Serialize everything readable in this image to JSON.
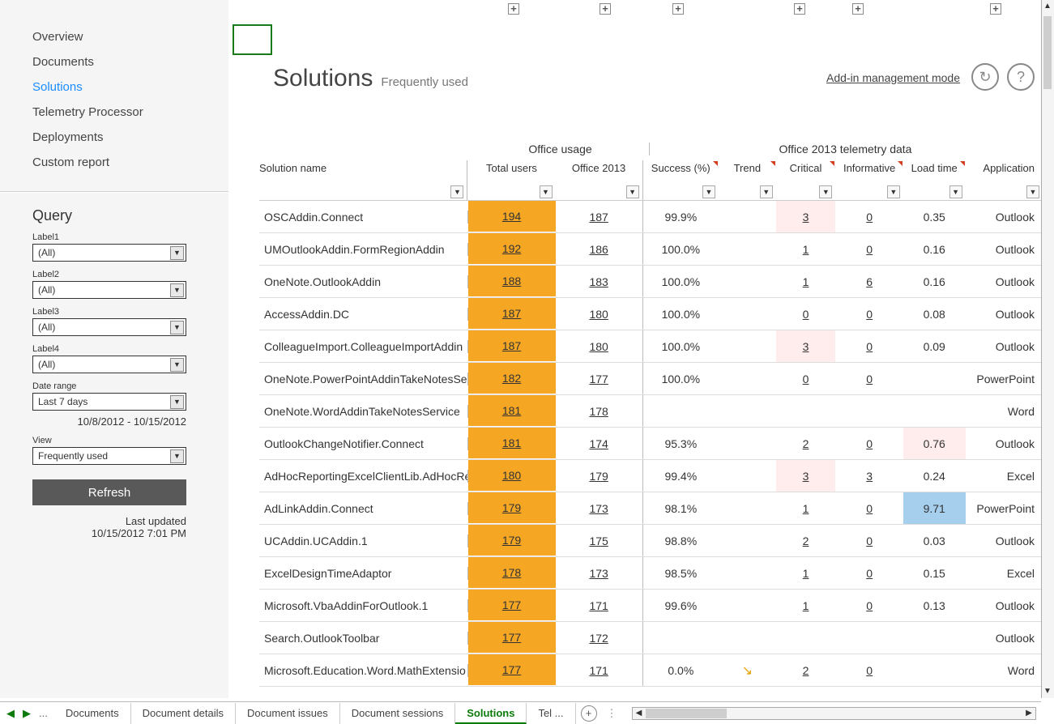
{
  "nav": {
    "items": [
      "Overview",
      "Documents",
      "Solutions",
      "Telemetry Processor",
      "Deployments",
      "Custom report"
    ],
    "active_index": 2
  },
  "query": {
    "title": "Query",
    "labels": [
      "Label1",
      "Label2",
      "Label3",
      "Label4"
    ],
    "values": [
      "(All)",
      "(All)",
      "(All)",
      "(All)"
    ],
    "date_range_label": "Date range",
    "date_range_value": "Last 7 days",
    "date_display": "10/8/2012 - 10/15/2012",
    "view_label": "View",
    "view_value": "Frequently used",
    "refresh": "Refresh",
    "last_updated_label": "Last updated",
    "last_updated_time": "10/15/2012 7:01 PM"
  },
  "header": {
    "title": "Solutions",
    "subtitle": "Frequently used",
    "addin_link": "Add-in management mode",
    "refresh_glyph": "↻",
    "help_glyph": "?"
  },
  "plus_positions": [
    627,
    740,
    830,
    980,
    1052,
    1222
  ],
  "table": {
    "group_headers": {
      "usage": "Office usage",
      "telemetry": "Office 2013 telemetry data"
    },
    "columns": {
      "name": "Solution name",
      "total": "Total users",
      "o2013": "Office 2013",
      "success": "Success (%)",
      "trend": "Trend",
      "critical": "Critical",
      "info": "Informative",
      "load": "Load time",
      "app": "Application"
    },
    "rows": [
      {
        "name": "OSCAddin.Connect",
        "total": "194",
        "o2013": "187",
        "success": "99.9%",
        "trend": "",
        "critical": "3",
        "critical_pink": true,
        "info": "0",
        "load": "0.35",
        "app": "Outlook"
      },
      {
        "name": "UMOutlookAddin.FormRegionAddin",
        "total": "192",
        "o2013": "186",
        "success": "100.0%",
        "trend": "",
        "critical": "1",
        "info": "0",
        "load": "0.16",
        "app": "Outlook"
      },
      {
        "name": "OneNote.OutlookAddin",
        "total": "188",
        "o2013": "183",
        "success": "100.0%",
        "trend": "",
        "critical": "1",
        "info": "6",
        "load": "0.16",
        "app": "Outlook"
      },
      {
        "name": "AccessAddin.DC",
        "total": "187",
        "o2013": "180",
        "success": "100.0%",
        "trend": "",
        "critical": "0",
        "info": "0",
        "load": "0.08",
        "app": "Outlook"
      },
      {
        "name": "ColleagueImport.ColleagueImportAddin",
        "total": "187",
        "o2013": "180",
        "success": "100.0%",
        "trend": "",
        "critical": "3",
        "critical_pink": true,
        "info": "0",
        "load": "0.09",
        "app": "Outlook"
      },
      {
        "name": "OneNote.PowerPointAddinTakeNotesSe",
        "total": "182",
        "o2013": "177",
        "success": "100.0%",
        "trend": "",
        "critical": "0",
        "info": "0",
        "load": "",
        "app": "PowerPoint"
      },
      {
        "name": "OneNote.WordAddinTakeNotesService",
        "total": "181",
        "o2013": "178",
        "success": "",
        "trend": "",
        "critical": "",
        "info": "",
        "load": "",
        "app": "Word"
      },
      {
        "name": "OutlookChangeNotifier.Connect",
        "total": "181",
        "o2013": "174",
        "success": "95.3%",
        "trend": "",
        "critical": "2",
        "info": "0",
        "load": "0.76",
        "load_pink": true,
        "app": "Outlook"
      },
      {
        "name": "AdHocReportingExcelClientLib.AdHocRe",
        "total": "180",
        "o2013": "179",
        "success": "99.4%",
        "trend": "",
        "critical": "3",
        "critical_pink": true,
        "info": "3",
        "load": "0.24",
        "app": "Excel"
      },
      {
        "name": "AdLinkAddin.Connect",
        "total": "179",
        "o2013": "173",
        "success": "98.1%",
        "trend": "",
        "critical": "1",
        "info": "0",
        "load": "9.71",
        "load_blue": true,
        "app": "PowerPoint"
      },
      {
        "name": "UCAddin.UCAddin.1",
        "total": "179",
        "o2013": "175",
        "success": "98.8%",
        "trend": "",
        "critical": "2",
        "info": "0",
        "load": "0.03",
        "app": "Outlook"
      },
      {
        "name": "ExcelDesignTimeAdaptor",
        "total": "178",
        "o2013": "173",
        "success": "98.5%",
        "trend": "",
        "critical": "1",
        "info": "0",
        "load": "0.15",
        "app": "Excel"
      },
      {
        "name": "Microsoft.VbaAddinForOutlook.1",
        "total": "177",
        "o2013": "171",
        "success": "99.6%",
        "trend": "",
        "critical": "1",
        "info": "0",
        "load": "0.13",
        "app": "Outlook"
      },
      {
        "name": "Search.OutlookToolbar",
        "total": "177",
        "o2013": "172",
        "success": "",
        "trend": "",
        "critical": "",
        "info": "",
        "load": "",
        "app": "Outlook"
      },
      {
        "name": "Microsoft.Education.Word.MathExtensio",
        "total": "177",
        "o2013": "171",
        "success": "0.0%",
        "trend": "↘",
        "critical": "2",
        "info": "0",
        "load": "",
        "app": "Word"
      }
    ]
  },
  "tabs": {
    "nav_prev": "◀",
    "nav_next": "▶",
    "dots": "...",
    "items": [
      "Documents",
      "Document details",
      "Document issues",
      "Document sessions",
      "Solutions",
      "Tel ..."
    ],
    "active_index": 4,
    "add": "+"
  },
  "colors": {
    "highlight_orange": "#f5a623",
    "highlight_blue": "#a6ceed",
    "highlight_pink": "#ffecec",
    "active_nav": "#1a8cff",
    "active_tab": "#0a7a0a"
  }
}
